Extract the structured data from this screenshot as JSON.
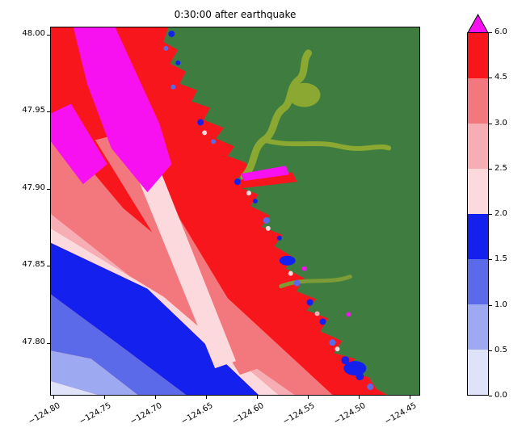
{
  "chart_data": {
    "type": "heatmap",
    "title": "0:30:00 after earthquake",
    "x_axis": {
      "tick_values": [
        -124.8,
        -124.75,
        -124.7,
        -124.65,
        -124.6,
        -124.55,
        -124.5,
        -124.45
      ],
      "tick_labels": [
        "−124.80",
        "−124.75",
        "−124.70",
        "−124.65",
        "−124.60",
        "−124.55",
        "−124.50",
        "−124.45"
      ],
      "lim": [
        -124.803,
        -124.44
      ]
    },
    "y_axis": {
      "tick_values": [
        48.0,
        47.95,
        47.9,
        47.85,
        47.8
      ],
      "tick_labels": [
        "48.00",
        "47.95",
        "47.90",
        "47.85",
        "47.80"
      ],
      "lim": [
        47.766,
        48.005
      ]
    },
    "colorbar": {
      "position": "right",
      "levels": [
        0.0,
        0.5,
        1.0,
        1.5,
        2.0,
        2.5,
        3.0,
        4.5,
        6.0
      ],
      "boundary_labels": [
        "6.0",
        "4.5",
        "3.0",
        "2.5",
        "2.0",
        "1.5",
        "1.0",
        "0.5",
        "0.0"
      ],
      "segment_colors_bottom_to_top": [
        "#dfe3fa",
        "#9daaf2",
        "#5a6ae8",
        "#1420ee",
        "#fbd9dd",
        "#f6aeb4",
        "#f3787d",
        "#f8161d"
      ],
      "over_color": "#f711f1"
    },
    "map": {
      "land_color": "#3e7d3f",
      "river_color": "#8aa832",
      "description": "Tsunami wave-height (m) contour field off a coastline 30 minutes after an earthquake: magenta (>6 m) streaks near shore and to the NW, red/salmon (3–6 m) over most of the nearshore ocean, banded pinks (2–3 m) and blues (<2 m) toward the SW offshore corner; dark green land with winding light-green river valleys."
    },
    "grid": false
  }
}
